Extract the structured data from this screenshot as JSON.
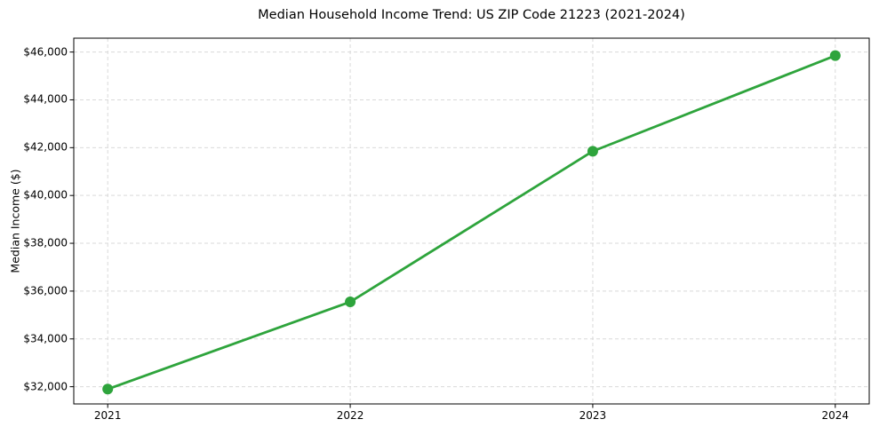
{
  "chart_data": {
    "type": "line",
    "title": "Median Household Income Trend: US ZIP Code 21223 (2021-2024)",
    "xlabel": "",
    "ylabel": "Median Income ($)",
    "x": [
      2021,
      2022,
      2023,
      2024
    ],
    "x_tick_labels": [
      "2021",
      "2022",
      "2023",
      "2024"
    ],
    "y_ticks": [
      32000,
      34000,
      36000,
      38000,
      40000,
      42000,
      44000,
      46000
    ],
    "y_tick_labels": [
      "$32,000",
      "$34,000",
      "$36,000",
      "$38,000",
      "$40,000",
      "$42,000",
      "$44,000",
      "$46,000"
    ],
    "series": [
      {
        "name": "Median Income",
        "values": [
          31900,
          35550,
          41850,
          45850
        ]
      }
    ],
    "xlim": [
      2020.86,
      2024.14
    ],
    "ylim": [
      31280,
      46580
    ],
    "grid": true,
    "grid_style": "dashed",
    "legend": "none",
    "line_color": "#2ea43c",
    "marker": "circle",
    "grid_color": "#d9d9d9",
    "background_color": "#ffffff"
  }
}
